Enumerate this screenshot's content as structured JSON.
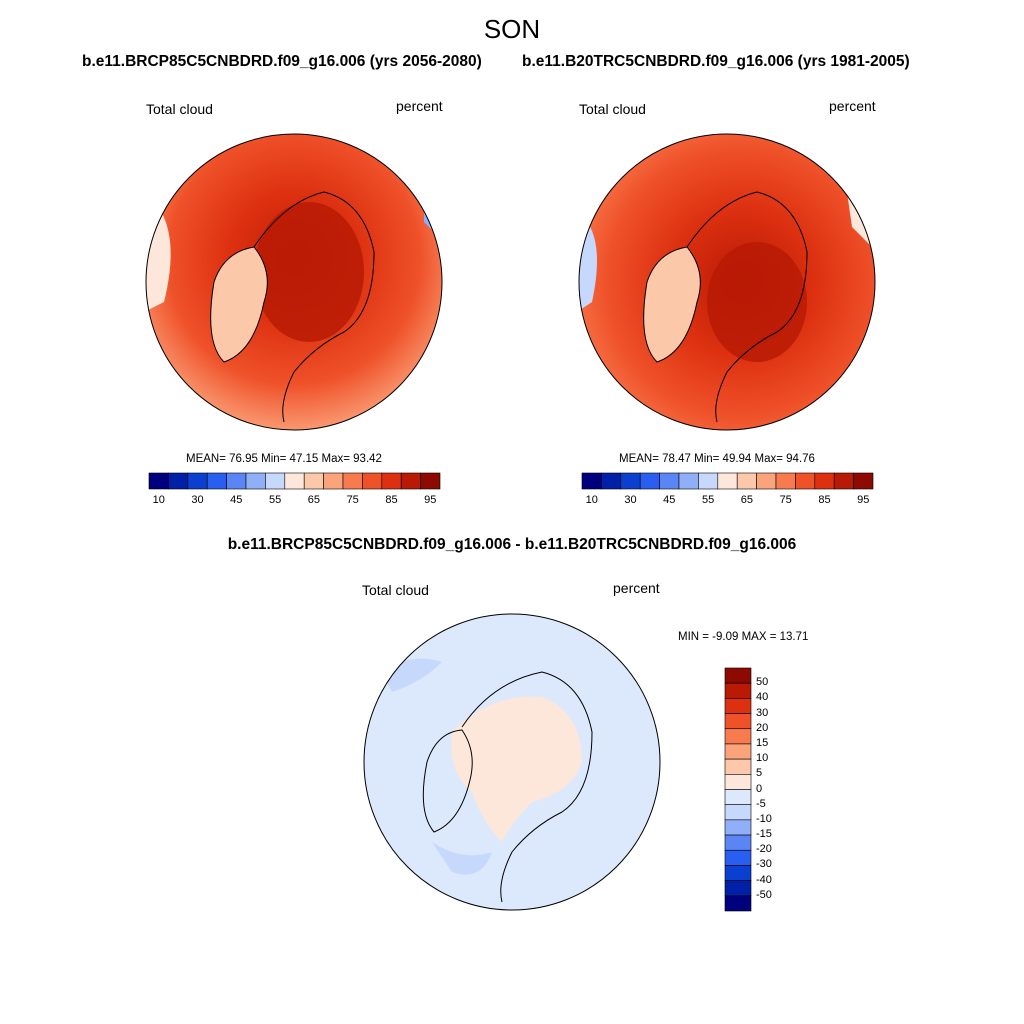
{
  "header": {
    "title": "SON",
    "left_subtitle": "b.e11.BRCP85C5CNBDRD.f09_g16.006 (yrs 2056-2080)",
    "right_subtitle": "b.e11.B20TRC5CNBDRD.f09_g16.006 (yrs 1981-2005)",
    "diff_subtitle": "b.e11.BRCP85C5CNBDRD.f09_g16.006 - b.e11.B20TRC5CNBDRD.f09_g16.006"
  },
  "panels": {
    "left": {
      "variable": "Total cloud",
      "units": "percent",
      "stats": "MEAN=  76.95  Min=  47.15  Max=  93.42"
    },
    "right": {
      "variable": "Total cloud",
      "units": "percent",
      "stats": "MEAN=  78.47  Min=  49.94  Max=  94.76"
    },
    "diff": {
      "variable": "Total cloud",
      "units": "percent",
      "stats": "MIN =  -9.09 MAX =  13.71"
    }
  },
  "colorbar_top": {
    "colors": [
      "#00007f",
      "#0020a8",
      "#0a3fd0",
      "#2a5ef0",
      "#5a86f5",
      "#8fb0f8",
      "#c6d8fc",
      "#fde7db",
      "#fcc8aa",
      "#fba47c",
      "#f87a4f",
      "#ef5129",
      "#dc3010",
      "#b81a05",
      "#8c0a00"
    ],
    "tick_labels": [
      "10",
      "30",
      "45",
      "55",
      "65",
      "75",
      "85",
      "95"
    ]
  },
  "colorbar_diff": {
    "colors": [
      "#8c0a00",
      "#b81a05",
      "#dc3010",
      "#ef5129",
      "#f87a4f",
      "#fba47c",
      "#fcc8aa",
      "#fde7db",
      "#dce8fb",
      "#c6d8fc",
      "#8fb0f8",
      "#5a86f5",
      "#2a5ef0",
      "#0a3fd0",
      "#0020a8",
      "#00007f"
    ],
    "tick_labels": [
      "50",
      "40",
      "30",
      "20",
      "15",
      "10",
      "5",
      "0",
      "-5",
      "-10",
      "-15",
      "-20",
      "-30",
      "-40",
      "-50"
    ]
  },
  "colors": {
    "land_outline": "#000000",
    "ocean_high": "#dc3010",
    "ocean_low": "#fba47c"
  }
}
